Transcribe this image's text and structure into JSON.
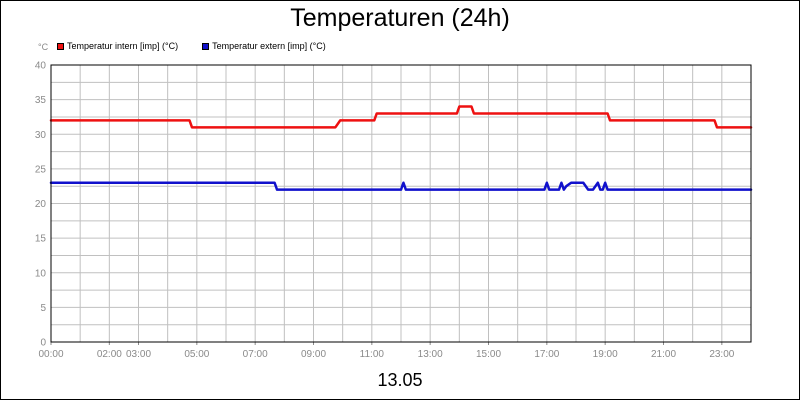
{
  "chart": {
    "title": "Temperaturen (24h)",
    "date_label": "13.05",
    "y_unit": "°C"
  },
  "legend": {
    "entries": [
      {
        "label": "Temperatur intern [imp] (°C)",
        "color": "#ee1111"
      },
      {
        "label": "Temperatur extern [imp] (°C)",
        "color": "#1111cc"
      }
    ]
  },
  "chart_data": {
    "type": "line",
    "title": "Temperaturen (24h)",
    "xlabel": "13.05",
    "ylabel": "°C",
    "xlim": [
      "00:00",
      "24:00"
    ],
    "ylim": [
      0,
      40
    ],
    "grid": true,
    "legend_position": "top-left",
    "x_ticks": [
      "00:00",
      "02:00",
      "03:00",
      "05:00",
      "07:00",
      "09:00",
      "11:00",
      "13:00",
      "15:00",
      "17:00",
      "19:00",
      "21:00",
      "23:00"
    ],
    "y_ticks": [
      0,
      5,
      10,
      15,
      20,
      25,
      30,
      35,
      40
    ],
    "series": [
      {
        "name": "Temperatur intern [imp] (°C)",
        "color": "#ee1111",
        "x": [
          "00:00",
          "04:45",
          "04:50",
          "09:45",
          "09:55",
          "11:05",
          "11:10",
          "13:55",
          "14:00",
          "14:25",
          "14:30",
          "19:05",
          "19:10",
          "22:45",
          "22:50",
          "24:00"
        ],
        "values": [
          32,
          32,
          31,
          31,
          32,
          32,
          33,
          33,
          34,
          34,
          33,
          33,
          32,
          32,
          31,
          31
        ]
      },
      {
        "name": "Temperatur extern [imp] (°C)",
        "color": "#1111cc",
        "x": [
          "00:00",
          "07:40",
          "07:45",
          "12:00",
          "12:05",
          "12:10",
          "16:55",
          "17:00",
          "17:05",
          "17:25",
          "17:30",
          "17:35",
          "17:40",
          "17:50",
          "18:15",
          "18:25",
          "18:35",
          "18:45",
          "18:50",
          "18:55",
          "19:00",
          "19:05",
          "24:00"
        ],
        "values": [
          23,
          23,
          22,
          22,
          23,
          22,
          22,
          23,
          22,
          22,
          23,
          22,
          22.5,
          23,
          23,
          22,
          22,
          23,
          22,
          22,
          23,
          22,
          22
        ]
      }
    ]
  }
}
